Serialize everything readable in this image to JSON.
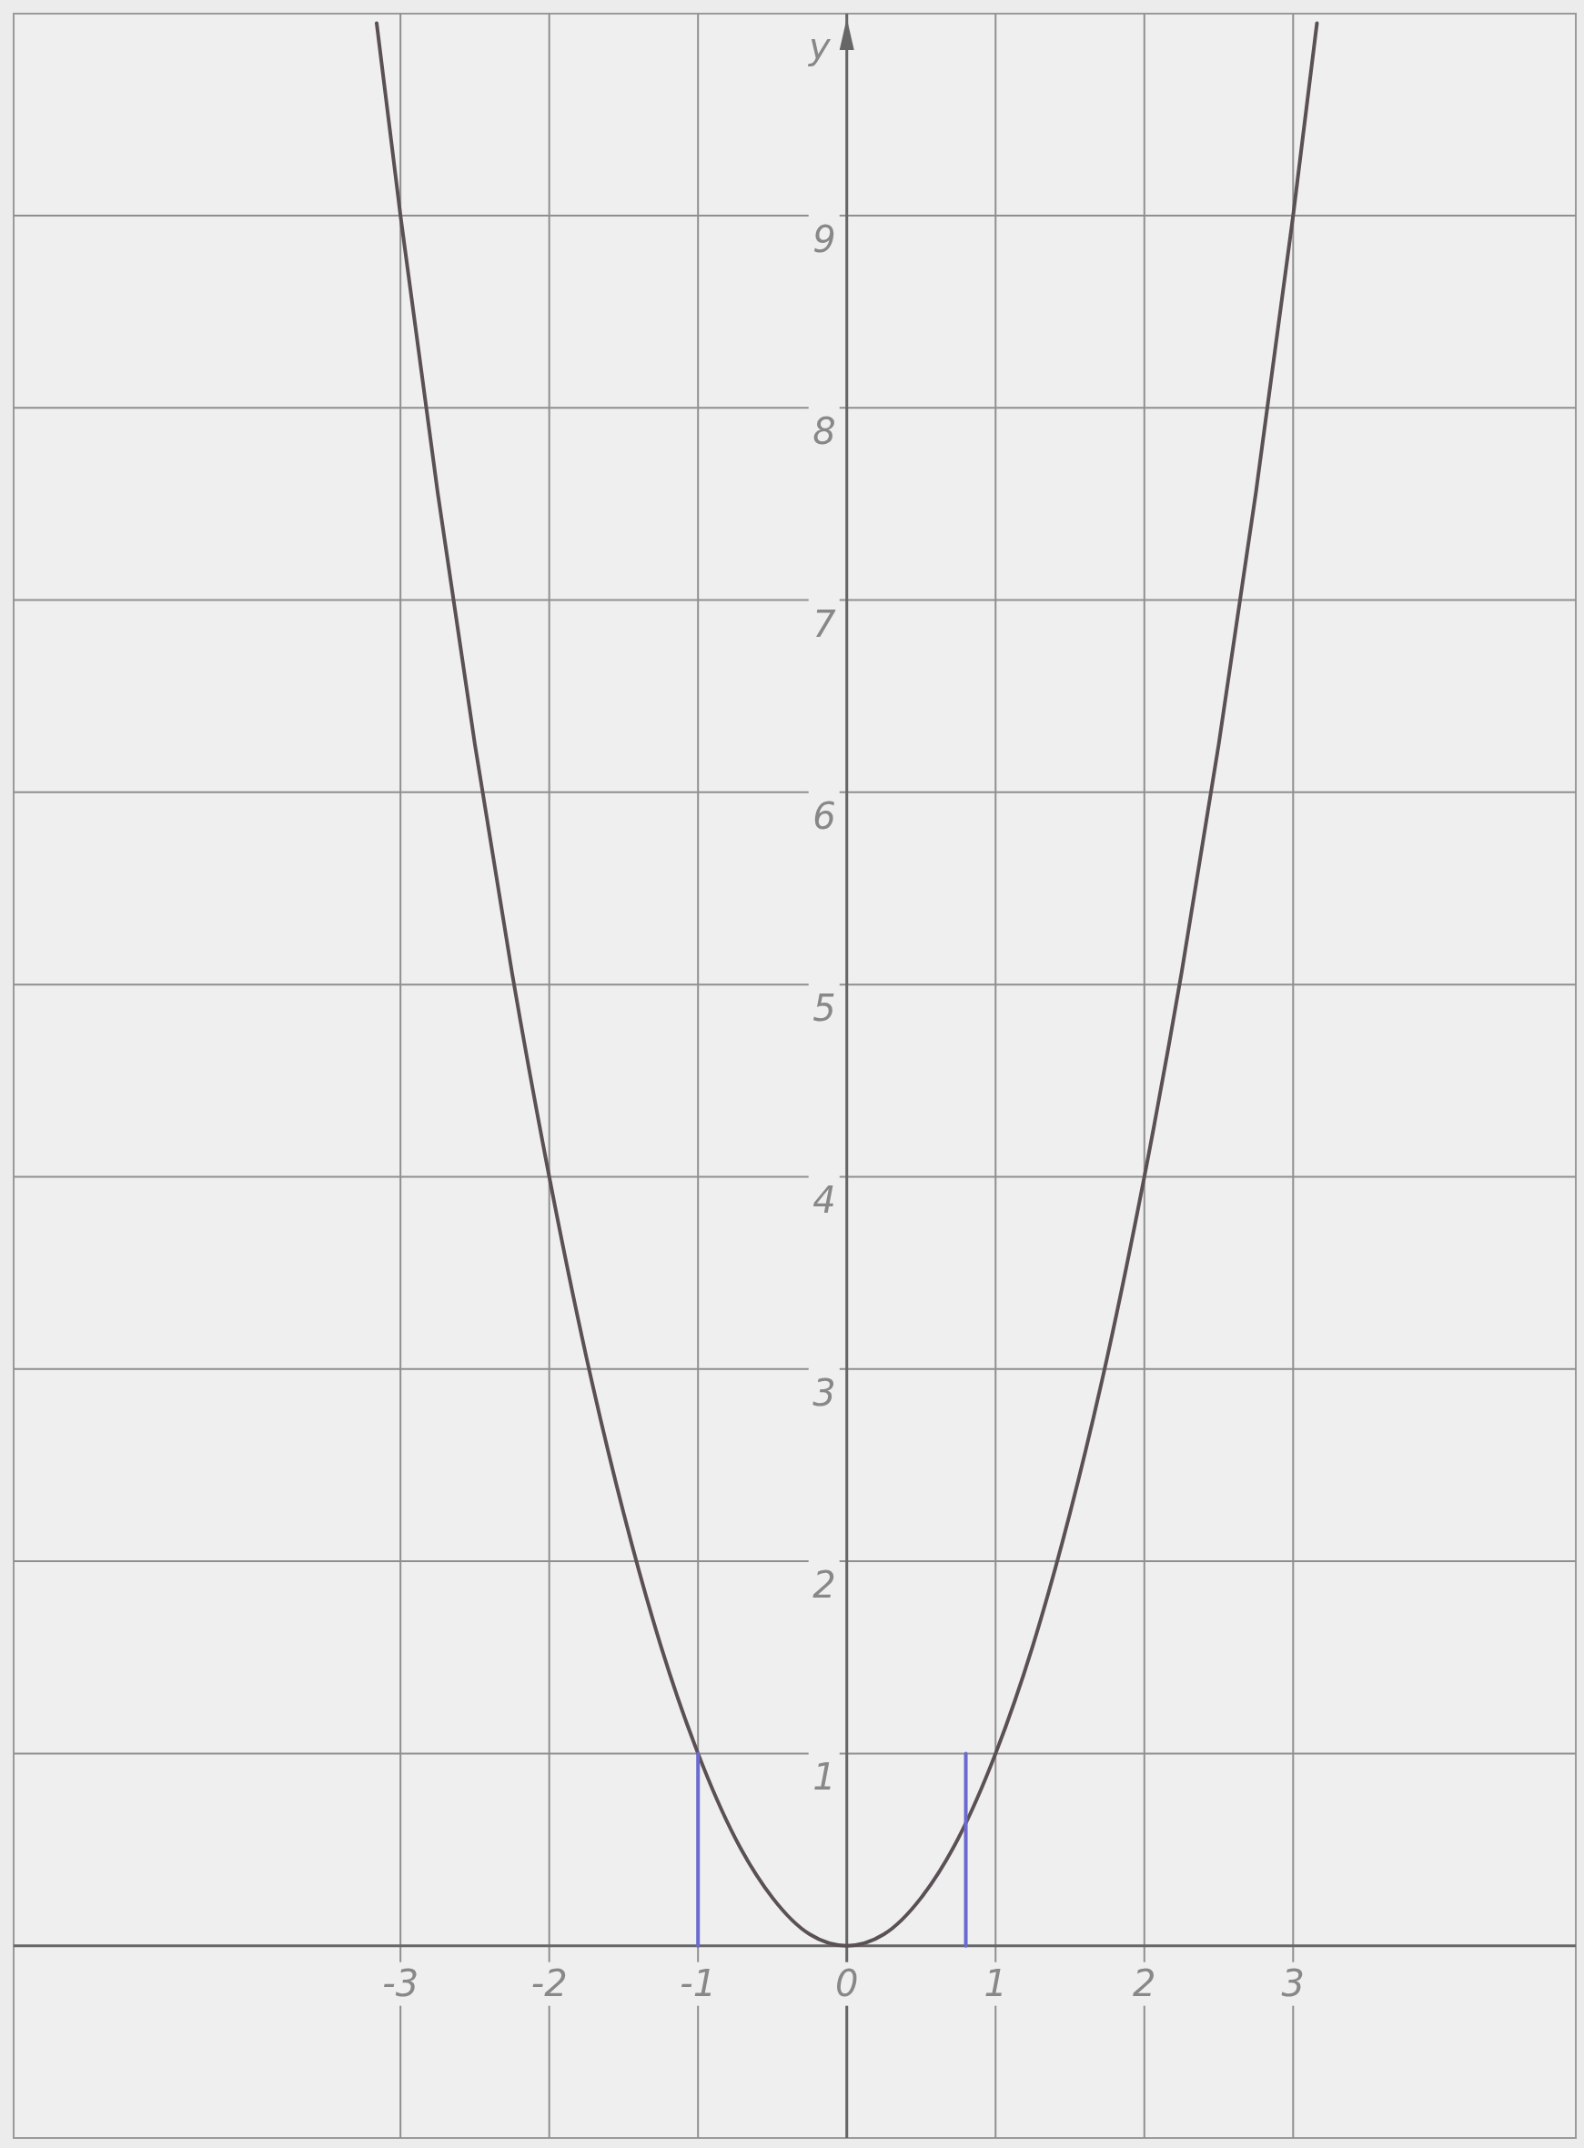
{
  "chart_data": {
    "type": "line",
    "ylabel": "y",
    "xlim": [
      -5.6,
      4.9
    ],
    "ylim": [
      -1,
      10.05
    ],
    "xticks": [
      -3,
      -2,
      -1,
      0,
      1,
      2,
      3
    ],
    "yticks": [
      1,
      2,
      3,
      4,
      5,
      6,
      7,
      8,
      9
    ],
    "grid": true,
    "series": [
      {
        "color": "#5a5055",
        "x": [
          -3.16,
          -3,
          -2.75,
          -2.5,
          -2.25,
          -2,
          -1.75,
          -1.5,
          -1.25,
          -1,
          -0.75,
          -0.5,
          -0.25,
          0,
          0.25,
          0.5,
          0.75,
          1,
          1.25,
          1.5,
          1.75,
          2,
          2.25,
          2.5,
          2.75,
          3,
          3.16
        ],
        "values": [
          10.0,
          9,
          7.56,
          6.25,
          5.06,
          4,
          3.06,
          2.25,
          1.56,
          1,
          0.56,
          0.25,
          0.06,
          0,
          0.06,
          0.25,
          0.56,
          1,
          1.56,
          2.25,
          3.06,
          4,
          5.06,
          6.25,
          7.56,
          9,
          10.0
        ]
      },
      {
        "color": "#6a6ad0",
        "x": [
          -1,
          -1
        ],
        "values": [
          0,
          1
        ]
      },
      {
        "color": "#6a6ad0",
        "x": [
          0.8,
          0.8
        ],
        "values": [
          0,
          1
        ]
      }
    ]
  }
}
